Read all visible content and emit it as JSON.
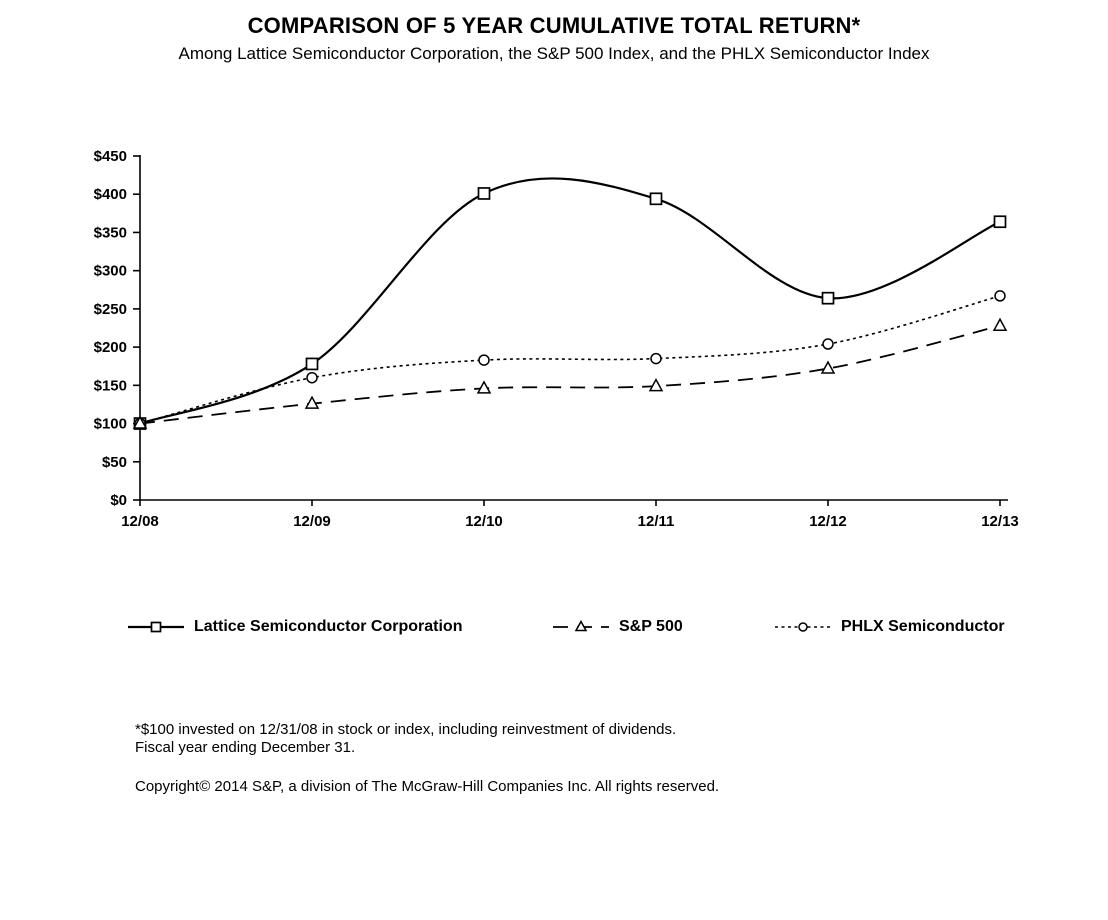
{
  "chart_data": {
    "type": "line",
    "title": "COMPARISON OF 5 YEAR CUMULATIVE TOTAL RETURN*",
    "subtitle": "Among Lattice Semiconductor Corporation, the S&P 500 Index, and the PHLX Semiconductor Index",
    "categories": [
      "12/08",
      "12/09",
      "12/10",
      "12/11",
      "12/12",
      "12/13"
    ],
    "series": [
      {
        "name": "Lattice Semiconductor Corporation",
        "values": [
          100,
          178,
          401,
          394,
          264,
          364
        ],
        "line_style": "solid",
        "marker": "square"
      },
      {
        "name": "S&P 500",
        "values": [
          100,
          126,
          146,
          149,
          172,
          228
        ],
        "line_style": "long-dash",
        "marker": "triangle"
      },
      {
        "name": "PHLX Semiconductor",
        "values": [
          100,
          160,
          183,
          185,
          204,
          267
        ],
        "line_style": "dotted",
        "marker": "circle"
      }
    ],
    "ylim": [
      0,
      450
    ],
    "ytick_step": 50,
    "ytick_labels": [
      "$0",
      "$50",
      "$100",
      "$150",
      "$200",
      "$250",
      "$300",
      "$350",
      "$400",
      "$450"
    ],
    "grid": false,
    "legend_position": "bottom",
    "line_color": "#000000",
    "axis_color": "#000000",
    "marker_fill": "#ffffff"
  },
  "footnotes": {
    "line1": "*$100 invested on 12/31/08 in stock or index, including reinvestment of dividends.",
    "line2": "Fiscal year ending December 31.",
    "copyright": "Copyright© 2014 S&P, a division of The McGraw-Hill Companies Inc. All rights reserved."
  }
}
